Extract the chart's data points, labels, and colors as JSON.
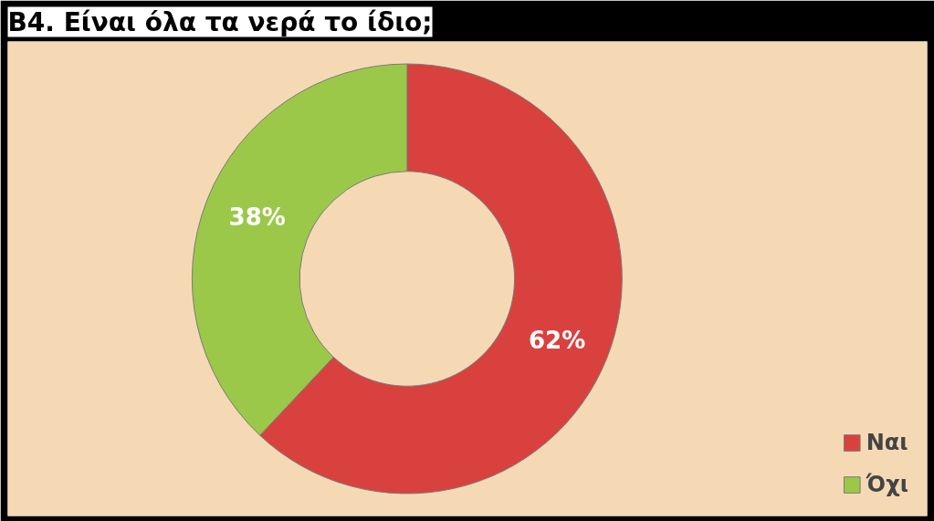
{
  "chart_data": {
    "type": "donut",
    "title": "B4. Είναι όλα τα νερά το ίδιο;",
    "categories": [
      "Ναι",
      "Όχι"
    ],
    "values": [
      62,
      38
    ],
    "colors": [
      "#d9413e",
      "#9bc848"
    ],
    "value_labels": [
      "62%",
      "38%"
    ],
    "legend": "bottom right"
  }
}
